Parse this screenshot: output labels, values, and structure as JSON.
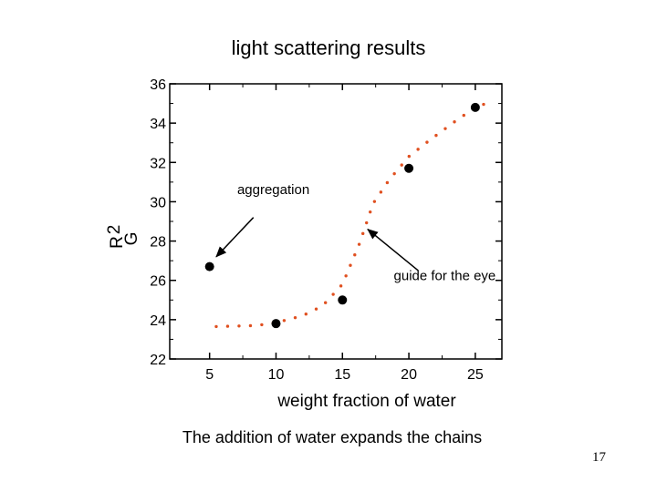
{
  "slide": {
    "title": "light scattering results",
    "caption": "The addition of water expands the chains",
    "page_number": "17"
  },
  "colors": {
    "accent": "#cc3300",
    "fit": "#e05020",
    "points": "#000000"
  },
  "chart_data": {
    "type": "scatter",
    "title": "light scattering results",
    "xlabel": "weight fraction of water",
    "ylabel_main": "R",
    "ylabel_sub": "G",
    "ylabel_sup": "2",
    "xlim": [
      2,
      27
    ],
    "ylim": [
      22,
      36
    ],
    "xticks": [
      5,
      10,
      15,
      20,
      25
    ],
    "yticks": [
      22,
      24,
      26,
      28,
      30,
      32,
      34,
      36
    ],
    "grid": false,
    "series": [
      {
        "values": [
          {
            "x": 5,
            "y": 26.7
          },
          {
            "x": 10,
            "y": 23.8
          },
          {
            "x": 15,
            "y": 25.0
          },
          {
            "x": 20,
            "y": 31.7
          },
          {
            "x": 25,
            "y": 34.8
          }
        ]
      }
    ],
    "fit_curve": [
      {
        "x": 5.5,
        "y": 23.65
      },
      {
        "x": 8.5,
        "y": 23.7
      },
      {
        "x": 10,
        "y": 23.85
      },
      {
        "x": 12,
        "y": 24.2
      },
      {
        "x": 13.5,
        "y": 24.7
      },
      {
        "x": 15,
        "y": 25.8
      },
      {
        "x": 16.3,
        "y": 27.9
      },
      {
        "x": 17.3,
        "y": 29.9
      },
      {
        "x": 18.5,
        "y": 31.1
      },
      {
        "x": 20,
        "y": 32.3
      },
      {
        "x": 21.5,
        "y": 33.1
      },
      {
        "x": 23.5,
        "y": 34.1
      },
      {
        "x": 25,
        "y": 34.8
      },
      {
        "x": 26.2,
        "y": 35.1
      }
    ],
    "annotations": [
      {
        "text": "aggregation",
        "text_x": 9.8,
        "text_y": 30.4,
        "arrow_to_x": 5.5,
        "arrow_to_y": 27.2,
        "arrow_from_x": 8.3,
        "arrow_from_y": 29.2
      },
      {
        "text": "guide for the eye",
        "text_x": 22.7,
        "text_y": 26.0,
        "arrow_to_x": 16.9,
        "arrow_to_y": 28.6,
        "arrow_from_x": 20.7,
        "arrow_from_y": 26.5
      }
    ]
  }
}
